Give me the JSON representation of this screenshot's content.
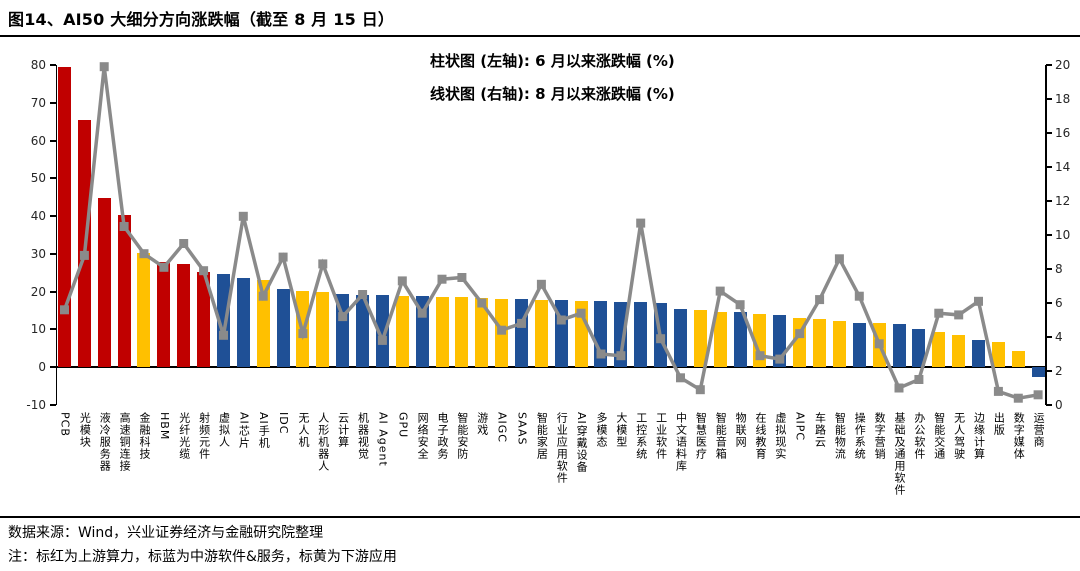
{
  "title": "图14、AI50 大细分方向涨跌幅（截至 8 月 15 日）",
  "legend": {
    "bar_label": "柱状图 (左轴): 6 月以来涨跌幅 (%)",
    "line_label": "线状图 (右轴): 8 月以来涨跌幅 (%)"
  },
  "footer": {
    "source": "数据来源：Wind，兴业证券经济与金融研究院整理",
    "note": "注：标红为上游算力，标蓝为中游软件&服务，标黄为下游应用"
  },
  "chart_data": {
    "type": "bar+line",
    "title": "AI50 大细分方向涨跌幅（截至 8 月 15 日）",
    "legend_position": "top-center",
    "grid": false,
    "categories": [
      "PCB",
      "光模块",
      "液冷服务器",
      "高速铜连接",
      "金融科技",
      "HBM",
      "光纤光缆",
      "射频元件",
      "虚拟人",
      "AI芯片",
      "AI手机",
      "IDC",
      "无人机",
      "人形机器人",
      "云计算",
      "机器视觉",
      "AI Agent",
      "GPU",
      "网络安全",
      "电子政务",
      "智能安防",
      "游戏",
      "AIGC",
      "SAAS",
      "智能家居",
      "行业应用软件",
      "AI穿戴设备",
      "多模态",
      "大模型",
      "工控系统",
      "工业软件",
      "中文语料库",
      "智慧医疗",
      "智能音箱",
      "物联网",
      "在线教育",
      "虚拟现实",
      "AIPC",
      "车路云",
      "智能物流",
      "操作系统",
      "数字营销",
      "基础及通用软件",
      "办公软件",
      "智能交通",
      "无人驾驶",
      "边缘计算",
      "出版",
      "数字媒体",
      "运营商"
    ],
    "series": [
      {
        "name": "6 月以来涨跌幅 (%)",
        "type": "bar",
        "axis": "left",
        "values": [
          79.5,
          65.5,
          44.7,
          40.3,
          30.3,
          27.9,
          27.2,
          25.3,
          24.6,
          23.5,
          23.2,
          20.8,
          20.3,
          19.9,
          19.5,
          19.2,
          19.0,
          18.9,
          18.8,
          18.7,
          18.6,
          18.2,
          18.1,
          18.0,
          17.9,
          17.7,
          17.5,
          17.4,
          17.3,
          17.2,
          16.9,
          15.4,
          15.2,
          14.7,
          14.5,
          14.2,
          13.9,
          12.9,
          12.7,
          12.3,
          11.8,
          11.7,
          11.5,
          10.2,
          9.4,
          8.5,
          7.2,
          6.8,
          4.2,
          -2.5
        ],
        "groups": [
          "red",
          "red",
          "red",
          "red",
          "yellow",
          "red",
          "red",
          "red",
          "blue",
          "blue",
          "yellow",
          "blue",
          "yellow",
          "yellow",
          "blue",
          "blue",
          "blue",
          "yellow",
          "blue",
          "yellow",
          "yellow",
          "yellow",
          "yellow",
          "blue",
          "yellow",
          "blue",
          "yellow",
          "blue",
          "blue",
          "blue",
          "blue",
          "blue",
          "yellow",
          "yellow",
          "blue",
          "yellow",
          "blue",
          "yellow",
          "yellow",
          "yellow",
          "blue",
          "yellow",
          "blue",
          "blue",
          "yellow",
          "yellow",
          "blue",
          "yellow",
          "yellow",
          "blue"
        ]
      },
      {
        "name": "8 月以来涨跌幅 (%)",
        "type": "line",
        "axis": "right",
        "values": [
          5.6,
          8.8,
          19.9,
          10.5,
          8.9,
          8.1,
          9.5,
          7.9,
          4.1,
          11.1,
          6.4,
          8.7,
          4.2,
          8.3,
          5.2,
          6.5,
          3.8,
          7.3,
          5.4,
          7.4,
          7.5,
          6.0,
          4.4,
          4.8,
          7.1,
          5.0,
          5.4,
          3.0,
          2.9,
          10.7,
          3.9,
          1.6,
          0.9,
          6.7,
          5.9,
          2.9,
          2.7,
          4.2,
          6.2,
          8.6,
          6.4,
          3.6,
          1.0,
          1.5,
          5.4,
          5.3,
          6.1,
          0.8,
          0.4,
          0.6
        ]
      }
    ],
    "left_axis": {
      "min": -10,
      "max": 80,
      "step": 10,
      "ticks": [
        "80",
        "70",
        "60",
        "50",
        "40",
        "30",
        "20",
        "10",
        "0",
        "-10"
      ]
    },
    "right_axis": {
      "min": 0,
      "max": 20,
      "step": 2,
      "ticks": [
        "20",
        "18",
        "16",
        "14",
        "12",
        "10",
        "8",
        "6",
        "4",
        "2",
        "0"
      ]
    },
    "colors": {
      "red": "#C00000",
      "yellow": "#FFC000",
      "blue": "#1F5096",
      "line": "#8A8A8A"
    },
    "color_meaning": {
      "red": "上游算力",
      "blue": "中游软件&服务",
      "yellow": "下游应用"
    }
  }
}
